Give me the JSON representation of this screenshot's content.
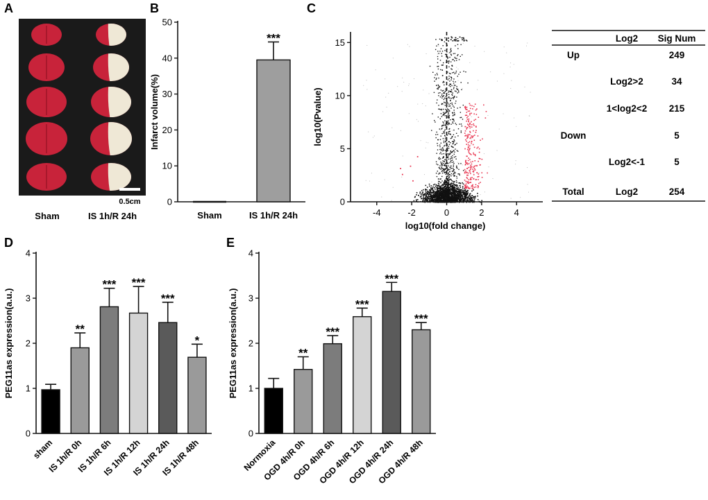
{
  "panel_labels": {
    "a": "A",
    "b": "B",
    "c": "C",
    "d": "D",
    "e": "E"
  },
  "panel_a": {
    "groups": [
      "Sham",
      "IS 1h/R 24h"
    ],
    "scale_bar": "0.5cm"
  },
  "colors": {
    "tissue_red": "#c8233a",
    "infarct_white": "#efe8d6",
    "gel_bg": "#1a1a1a",
    "volcano_black": "#111111",
    "volcano_red": "#e8344f"
  },
  "chart_data": [
    {
      "id": "panel_b",
      "type": "bar",
      "title": "",
      "xlabel": "",
      "ylabel": "Infarct volume(%)",
      "ylim": [
        0,
        50
      ],
      "yticks": [
        "0",
        "10",
        "20",
        "30",
        "40",
        "50"
      ],
      "categories": [
        "Sham",
        "IS 1h/R 24h"
      ],
      "values": [
        0,
        39.5
      ],
      "errors": [
        0,
        5
      ],
      "significance": [
        "",
        "***"
      ],
      "bar_colors": [
        "#9e9e9e",
        "#9e9e9e"
      ]
    },
    {
      "id": "panel_c",
      "type": "scatter",
      "title": "",
      "xlabel": "log10(fold change)",
      "ylabel": "log10(Pvalue)",
      "xlim": [
        -5.5,
        5.5
      ],
      "ylim": [
        0,
        16
      ],
      "xticks": [
        "-4",
        "-2",
        "0",
        "2",
        "4"
      ],
      "yticks": [
        "0",
        "5",
        "10",
        "15"
      ],
      "table": {
        "headers": [
          "",
          "Log2",
          "Sig Num"
        ],
        "rows": [
          {
            "group": "Up",
            "log2": "",
            "sig": "249"
          },
          {
            "group": "",
            "log2": "Log2>2",
            "sig": "34"
          },
          {
            "group": "",
            "log2": "1<log2<2",
            "sig": "215"
          },
          {
            "group": "Down",
            "log2": "",
            "sig": "5"
          },
          {
            "group": "",
            "log2": "Log2<-1",
            "sig": "5"
          },
          {
            "group": "Total",
            "log2": "Log2",
            "sig": "254"
          }
        ]
      }
    },
    {
      "id": "panel_d",
      "type": "bar",
      "title": "",
      "xlabel": "",
      "ylabel": "PEG11as expression(a.u.)",
      "ylim": [
        0,
        4
      ],
      "yticks": [
        "0",
        "1",
        "2",
        "3",
        "4"
      ],
      "categories": [
        "sham",
        "IS 1h/R 0h",
        "IS 1h/R 6h",
        "IS 1h/R 12h",
        "IS 1h/R 24h",
        "IS 1h/R 48h"
      ],
      "values": [
        0.97,
        1.9,
        2.81,
        2.67,
        2.46,
        1.69
      ],
      "errors": [
        0.12,
        0.33,
        0.41,
        0.59,
        0.45,
        0.29
      ],
      "significance": [
        "",
        "**",
        "***",
        "***",
        "***",
        "*"
      ],
      "bar_colors": [
        "#000000",
        "#9a9a9a",
        "#7c7c7c",
        "#d4d4d4",
        "#5a5a5a",
        "#9a9a9a"
      ]
    },
    {
      "id": "panel_e",
      "type": "bar",
      "title": "",
      "xlabel": "",
      "ylabel": "PEG11as expression(a.u.)",
      "ylim": [
        0,
        4
      ],
      "yticks": [
        "0",
        "1",
        "2",
        "3",
        "4"
      ],
      "categories": [
        "Normoxia",
        "OGD 4h/R 0h",
        "OGD 4h/R 6h",
        "OGD 4h/R 12h",
        "OGD 4h/R 24h",
        "OGD 4h/R 48h"
      ],
      "values": [
        1.0,
        1.42,
        1.99,
        2.59,
        3.15,
        2.3
      ],
      "errors": [
        0.22,
        0.28,
        0.18,
        0.19,
        0.2,
        0.16
      ],
      "significance": [
        "",
        "**",
        "***",
        "***",
        "***",
        "***"
      ],
      "bar_colors": [
        "#000000",
        "#9a9a9a",
        "#7c7c7c",
        "#d4d4d4",
        "#5a5a5a",
        "#9a9a9a"
      ]
    }
  ]
}
